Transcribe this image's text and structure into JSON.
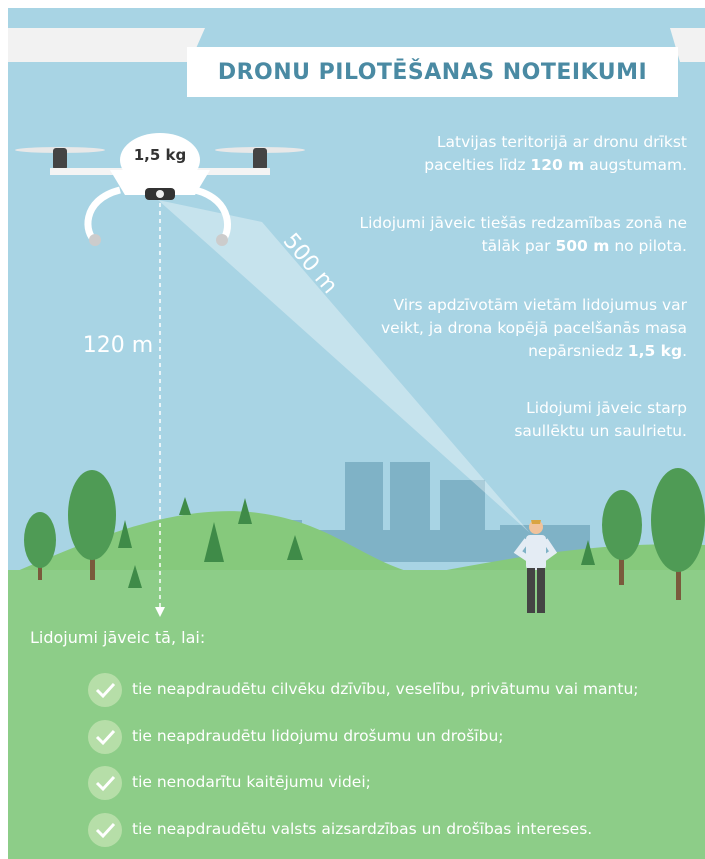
{
  "title": "DRONU PILOTĒŠANAS NOTEIKUMI",
  "drone": {
    "weight_label": "1,5 kg",
    "height_label": "120 m",
    "distance_label": "500 m"
  },
  "rules": [
    {
      "before": "Latvijas teritorijā ar dronu drīkst pacelties līdz ",
      "strong": "120 m",
      "after": " augstumam."
    },
    {
      "before": "Lidojumi jāveic tiešās redzamības zonā ne tālāk par ",
      "strong": "500 m",
      "after": " no pilota."
    },
    {
      "before": "Virs apdzīvotām vietām lidojumus var veikt, ja drona kopējā pacelšanās masa nepārsniedz ",
      "strong": "1,5 kg",
      "after": "."
    },
    {
      "text": "Lidojumi jāveic starp saullēktu un saulrietu."
    }
  ],
  "conditions": {
    "heading": "Lidojumi jāveic tā, lai:",
    "items": [
      "tie neapdraudētu cilvēku dzīvību, veselību, privātumu vai mantu;",
      "tie neapdraudētu lidojumu drošumu un drošību;",
      "tie nenodarītu kaitējumu videi;",
      "tie neapdraudētu valsts aizsardzības un drošības intereses."
    ]
  }
}
